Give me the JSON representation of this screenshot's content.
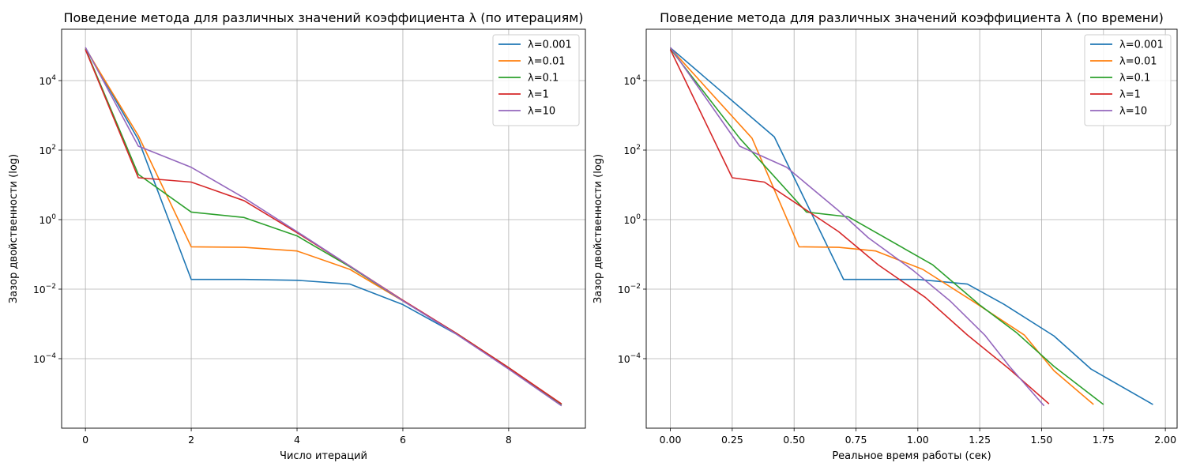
{
  "chart_data": [
    {
      "type": "line",
      "title": "Поведение метода для различных значений коэффициента λ  (по итерациям)",
      "xlabel": "Число итераций",
      "ylabel": "Зазор двойственности (log)",
      "yscale": "log",
      "xlim": [
        -0.45,
        9.45
      ],
      "ylim": [
        1e-06,
        300000.0
      ],
      "xticks": [
        0,
        2,
        4,
        6,
        8
      ],
      "xtick_labels": [
        "0",
        "2",
        "4",
        "6",
        "8"
      ],
      "yticks": [
        0.0001,
        0.01,
        1,
        100.0,
        10000.0
      ],
      "ytick_labels": [
        {
          "b": "10",
          "e": "−4"
        },
        {
          "b": "10",
          "e": "−2"
        },
        {
          "b": "10",
          "e": "0"
        },
        {
          "b": "10",
          "e": "2"
        },
        {
          "b": "10",
          "e": "4"
        }
      ],
      "grid": true,
      "legend_position": "top-right",
      "series": [
        {
          "name": "λ=0.001",
          "color": "#1f77b4",
          "x": [
            0,
            1,
            2,
            3,
            4,
            5,
            6,
            7,
            8,
            9
          ],
          "y": [
            88000,
            200,
            0.019,
            0.019,
            0.018,
            0.014,
            0.0036,
            0.00052,
            5.2e-05,
            4.8e-06
          ]
        },
        {
          "name": "λ=0.01",
          "color": "#ff7f0e",
          "x": [
            0,
            1,
            2,
            3,
            4,
            5,
            6,
            7,
            8,
            9
          ],
          "y": [
            85000,
            260,
            0.165,
            0.16,
            0.125,
            0.037,
            0.0046,
            0.00055,
            5.5e-05,
            4.8e-06
          ]
        },
        {
          "name": "λ=0.1",
          "color": "#2ca02c",
          "x": [
            0,
            1,
            2,
            3,
            4,
            5,
            6,
            7,
            8,
            9
          ],
          "y": [
            82000,
            20,
            1.65,
            1.15,
            0.34,
            0.044,
            0.0046,
            0.00055,
            5.5e-05,
            4.8e-06
          ]
        },
        {
          "name": "λ=1",
          "color": "#d62728",
          "x": [
            0,
            1,
            2,
            3,
            4,
            5,
            6,
            7,
            8,
            9
          ],
          "y": [
            78000,
            16,
            12,
            3.5,
            0.42,
            0.046,
            0.0048,
            0.00055,
            5.5e-05,
            5e-06
          ]
        },
        {
          "name": "λ=10",
          "color": "#9467bd",
          "x": [
            0,
            1,
            2,
            3,
            4,
            5,
            6,
            7,
            8,
            9
          ],
          "y": [
            90000,
            130,
            32,
            4.2,
            0.45,
            0.046,
            0.0046,
            0.00052,
            5e-05,
            4.4e-06
          ]
        }
      ]
    },
    {
      "type": "line",
      "title": "Поведение метода для различных значений коэффициента λ  (по времени)",
      "xlabel": "Реальное время работы (сек)",
      "ylabel": "Зазор двойственности (log)",
      "yscale": "log",
      "xlim": [
        -0.0975,
        2.0475
      ],
      "ylim": [
        1e-06,
        300000.0
      ],
      "xticks": [
        0,
        0.25,
        0.5,
        0.75,
        1.0,
        1.25,
        1.5,
        1.75,
        2.0
      ],
      "xtick_labels": [
        "0.00",
        "0.25",
        "0.50",
        "0.75",
        "1.00",
        "1.25",
        "1.50",
        "1.75",
        "2.00"
      ],
      "yticks": [
        0.0001,
        0.01,
        1,
        100.0,
        10000.0
      ],
      "ytick_labels": [
        {
          "b": "10",
          "e": "−4"
        },
        {
          "b": "10",
          "e": "−2"
        },
        {
          "b": "10",
          "e": "0"
        },
        {
          "b": "10",
          "e": "2"
        },
        {
          "b": "10",
          "e": "4"
        }
      ],
      "grid": true,
      "legend_position": "top-right",
      "series": [
        {
          "name": "λ=0.001",
          "color": "#1f77b4",
          "x": [
            0,
            0.42,
            0.7,
            1.0,
            1.2,
            1.35,
            1.55,
            1.7,
            1.95
          ],
          "y": [
            88000,
            240,
            0.019,
            0.019,
            0.014,
            0.0036,
            0.00045,
            5e-05,
            4.8e-06
          ]
        },
        {
          "name": "λ=0.01",
          "color": "#ff7f0e",
          "x": [
            0,
            0.33,
            0.52,
            0.68,
            0.83,
            1.02,
            1.22,
            1.43,
            1.55,
            1.71
          ],
          "y": [
            85000,
            220,
            0.165,
            0.16,
            0.125,
            0.037,
            0.0046,
            0.00048,
            4.5e-05,
            4.8e-06
          ]
        },
        {
          "name": "λ=0.1",
          "color": "#2ca02c",
          "x": [
            0,
            0.28,
            0.55,
            0.72,
            1.06,
            1.25,
            1.4,
            1.55,
            1.75
          ],
          "y": [
            82000,
            220,
            1.65,
            1.2,
            0.05,
            0.0035,
            0.00055,
            6e-05,
            4.8e-06
          ]
        },
        {
          "name": "λ=1",
          "color": "#d62728",
          "x": [
            0,
            0.25,
            0.38,
            0.68,
            0.84,
            1.03,
            1.2,
            1.37,
            1.53
          ],
          "y": [
            78000,
            16,
            12,
            0.45,
            0.05,
            0.0058,
            0.00048,
            5e-05,
            5e-06
          ]
        },
        {
          "name": "λ=10",
          "color": "#9467bd",
          "x": [
            0,
            0.28,
            0.47,
            0.68,
            0.8,
            0.98,
            1.13,
            1.27,
            1.37,
            1.51
          ],
          "y": [
            90000,
            130,
            32,
            1.8,
            0.3,
            0.035,
            0.0046,
            0.00048,
            6e-05,
            4.4e-06
          ]
        }
      ]
    }
  ]
}
